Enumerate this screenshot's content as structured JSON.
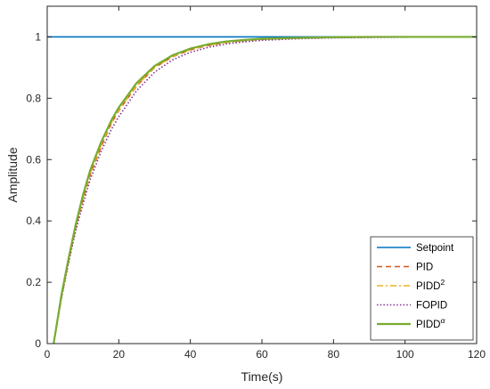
{
  "chart_data": {
    "type": "line",
    "title": "",
    "xlabel": "Time(s)",
    "ylabel": "Amplitude",
    "xlim": [
      0,
      120
    ],
    "ylim": [
      0,
      1.1
    ],
    "x_ticks": [
      0,
      20,
      40,
      60,
      80,
      100,
      120
    ],
    "y_ticks": [
      0,
      0.2,
      0.4,
      0.6,
      0.8,
      1
    ],
    "grid": false,
    "legend_position": "bottom-right",
    "series": [
      {
        "name": "Setpoint",
        "name_sup": "",
        "color": "#0072BD",
        "style": "solid",
        "x": [
          0,
          120
        ],
        "y": [
          1,
          1
        ]
      },
      {
        "name": "PID",
        "name_sup": "",
        "color": "#D95319",
        "style": "dashed",
        "x": [
          1.8,
          4,
          6,
          8,
          10,
          12,
          15,
          18,
          20,
          25,
          30,
          35,
          40,
          45,
          50,
          55,
          60,
          70,
          80,
          90,
          100,
          110,
          120
        ],
        "y": [
          0,
          0.15,
          0.27,
          0.38,
          0.47,
          0.55,
          0.64,
          0.72,
          0.76,
          0.84,
          0.9,
          0.935,
          0.958,
          0.972,
          0.982,
          0.988,
          0.992,
          0.996,
          0.998,
          0.999,
          1.0,
          1.0,
          1.0
        ]
      },
      {
        "name": "PIDD",
        "name_sup": "2",
        "color": "#EDB120",
        "style": "dashdot",
        "x": [
          1.8,
          4,
          6,
          8,
          10,
          12,
          15,
          18,
          20,
          25,
          30,
          35,
          40,
          45,
          50,
          55,
          60,
          70,
          80,
          90,
          100,
          110,
          120
        ],
        "y": [
          0,
          0.155,
          0.275,
          0.385,
          0.475,
          0.555,
          0.645,
          0.722,
          0.763,
          0.842,
          0.9,
          0.936,
          0.959,
          0.973,
          0.982,
          0.988,
          0.992,
          0.996,
          0.998,
          0.999,
          1.0,
          1.0,
          1.0
        ]
      },
      {
        "name": "FOPID",
        "name_sup": "",
        "color": "#7E2F8E",
        "style": "dotted",
        "x": [
          1.8,
          4,
          6,
          8,
          10,
          12,
          15,
          18,
          20,
          25,
          30,
          35,
          40,
          45,
          50,
          55,
          60,
          70,
          80,
          90,
          100,
          110,
          120
        ],
        "y": [
          0,
          0.15,
          0.265,
          0.37,
          0.455,
          0.535,
          0.625,
          0.7,
          0.74,
          0.825,
          0.885,
          0.925,
          0.95,
          0.966,
          0.977,
          0.984,
          0.989,
          0.994,
          0.997,
          0.998,
          0.999,
          1.0,
          1.0
        ]
      },
      {
        "name": "PIDD",
        "name_sup": "α",
        "color": "#77AC30",
        "style": "solid",
        "x": [
          1.8,
          4,
          6,
          8,
          10,
          12,
          15,
          18,
          20,
          25,
          30,
          35,
          40,
          45,
          50,
          55,
          60,
          70,
          80,
          90,
          100,
          110,
          120
        ],
        "y": [
          0,
          0.16,
          0.28,
          0.39,
          0.485,
          0.565,
          0.655,
          0.73,
          0.77,
          0.85,
          0.905,
          0.94,
          0.962,
          0.976,
          0.985,
          0.99,
          0.994,
          0.997,
          0.999,
          1.0,
          1.0,
          1.0,
          1.0
        ]
      }
    ]
  }
}
